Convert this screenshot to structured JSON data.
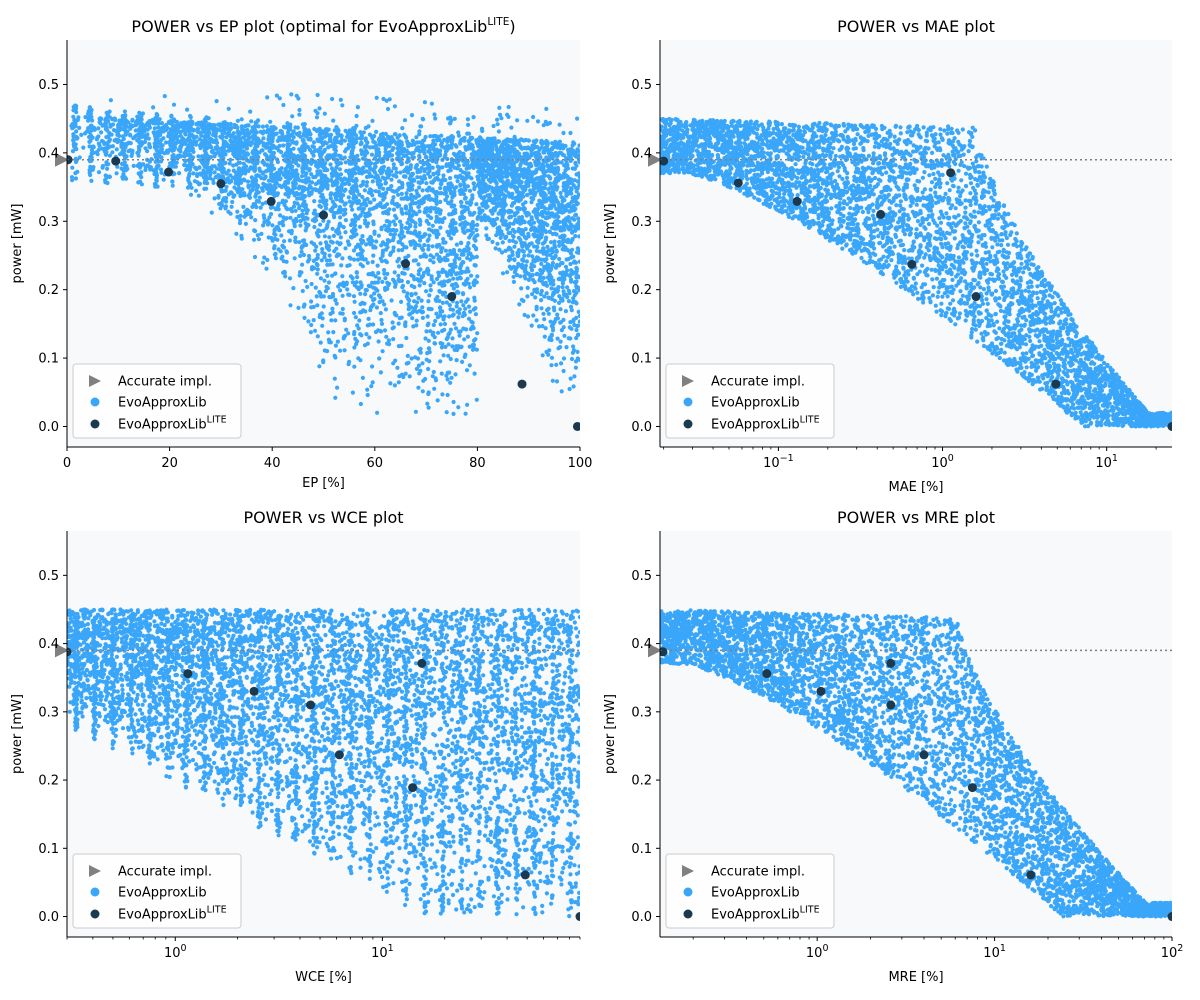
{
  "colors": {
    "cloud": "#3aa6fa",
    "lite": "#1b3a4f",
    "accurate": "#808080",
    "axes_bg": "#f7f9fb",
    "refline": "#7f7f7f"
  },
  "legend": {
    "accurate": "Accurate impl.",
    "evo": "EvoApproxLib",
    "lite_base": "EvoApproxLib",
    "lite_sup": "LITE"
  },
  "chart_data": [
    {
      "id": "ep",
      "type": "scatter",
      "title": "POWER vs EP plot (optimal for EvoApproxLib",
      "title_sup": "LITE",
      "title_tail": ")",
      "xlabel": "EP [%]",
      "ylabel": "power [mW]",
      "xscale": "linear",
      "xlim": [
        0,
        100
      ],
      "ylim": [
        -0.03,
        0.565
      ],
      "xticks": [
        0,
        20,
        40,
        60,
        80,
        100
      ],
      "xtick_labels": [
        "0",
        "20",
        "40",
        "60",
        "80",
        "100"
      ],
      "yticks": [
        0.0,
        0.1,
        0.2,
        0.3,
        0.4,
        0.5
      ],
      "ytick_labels": [
        "0.0",
        "0.1",
        "0.2",
        "0.3",
        "0.4",
        "0.5"
      ],
      "accurate": {
        "x": 0,
        "y": 0.39
      },
      "lite_points": [
        [
          0.2,
          0.39
        ],
        [
          9.5,
          0.388
        ],
        [
          19.8,
          0.372
        ],
        [
          30,
          0.355
        ],
        [
          39.8,
          0.329
        ],
        [
          50,
          0.309
        ],
        [
          66,
          0.238
        ],
        [
          75,
          0.19
        ],
        [
          88.7,
          0.062
        ],
        [
          99.5,
          0.0
        ]
      ],
      "legend_position": "lower-left"
    },
    {
      "id": "mae",
      "type": "scatter",
      "title": "POWER vs MAE plot",
      "xlabel": "MAE [%]",
      "ylabel": "power [mW]",
      "xscale": "log",
      "xlim": [
        0.019,
        25
      ],
      "ylim": [
        -0.03,
        0.565
      ],
      "xticks": [
        0.1,
        1,
        10
      ],
      "xtick_labels": [
        [
          "10",
          "−1"
        ],
        [
          "10",
          "0"
        ],
        [
          "10",
          "1"
        ]
      ],
      "yticks": [
        0.0,
        0.1,
        0.2,
        0.3,
        0.4,
        0.5
      ],
      "ytick_labels": [
        "0.0",
        "0.1",
        "0.2",
        "0.3",
        "0.4",
        "0.5"
      ],
      "accurate": {
        "x": 0.019,
        "y": 0.39
      },
      "lite_points": [
        [
          0.02,
          0.388
        ],
        [
          0.057,
          0.356
        ],
        [
          0.13,
          0.329
        ],
        [
          0.42,
          0.31
        ],
        [
          0.65,
          0.237
        ],
        [
          1.12,
          0.371
        ],
        [
          1.6,
          0.19
        ],
        [
          4.9,
          0.062
        ],
        [
          25,
          0.0
        ]
      ],
      "legend_position": "lower-left"
    },
    {
      "id": "wce",
      "type": "scatter",
      "title": "POWER vs WCE plot",
      "xlabel": "WCE [%]",
      "ylabel": "power [mW]",
      "xscale": "log",
      "xlim": [
        0.3,
        90
      ],
      "ylim": [
        -0.03,
        0.565
      ],
      "xticks": [
        1,
        10
      ],
      "xtick_labels": [
        [
          "10",
          "0"
        ],
        [
          "10",
          "1"
        ]
      ],
      "yticks": [
        0.0,
        0.1,
        0.2,
        0.3,
        0.4,
        0.5
      ],
      "ytick_labels": [
        "0.0",
        "0.1",
        "0.2",
        "0.3",
        "0.4",
        "0.5"
      ],
      "accurate": {
        "x": 0.3,
        "y": 0.39
      },
      "lite_points": [
        [
          0.3,
          0.388
        ],
        [
          1.15,
          0.356
        ],
        [
          2.4,
          0.33
        ],
        [
          4.5,
          0.31
        ],
        [
          6.2,
          0.237
        ],
        [
          15.5,
          0.371
        ],
        [
          14,
          0.189
        ],
        [
          49,
          0.061
        ],
        [
          90,
          0.0
        ]
      ],
      "legend_position": "lower-left"
    },
    {
      "id": "mre",
      "type": "scatter",
      "title": "POWER vs MRE plot",
      "xlabel": "MRE [%]",
      "ylabel": "power [mW]",
      "xscale": "log",
      "xlim": [
        0.13,
        100
      ],
      "ylim": [
        -0.03,
        0.565
      ],
      "xticks": [
        1,
        10,
        100
      ],
      "xtick_labels": [
        [
          "10",
          "0"
        ],
        [
          "10",
          "1"
        ],
        [
          "10",
          "2"
        ]
      ],
      "yticks": [
        0.0,
        0.1,
        0.2,
        0.3,
        0.4,
        0.5
      ],
      "ytick_labels": [
        "0.0",
        "0.1",
        "0.2",
        "0.3",
        "0.4",
        "0.5"
      ],
      "accurate": {
        "x": 0.13,
        "y": 0.39
      },
      "lite_points": [
        [
          0.135,
          0.388
        ],
        [
          0.52,
          0.356
        ],
        [
          1.05,
          0.33
        ],
        [
          2.6,
          0.371
        ],
        [
          2.6,
          0.31
        ],
        [
          4.0,
          0.237
        ],
        [
          7.5,
          0.189
        ],
        [
          16,
          0.061
        ],
        [
          100,
          0.0
        ]
      ],
      "legend_position": "lower-left"
    }
  ]
}
